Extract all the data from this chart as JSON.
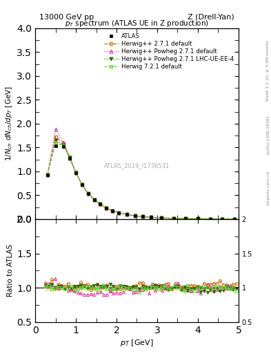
{
  "title_top": "13000 GeV pp",
  "title_right": "Z (Drell-Yan)",
  "plot_title": "$p_T$ spectrum (ATLAS UE in Z production)",
  "watermark": "ATLAS_2019_I1736531",
  "ylabel_main": "$1/N_{ch}$ $dN_{ch}/dp_T$ [GeV]",
  "ylabel_ratio": "Ratio to ATLAS",
  "xlabel": "$p_T$ [GeV]",
  "xlim": [
    0,
    5.0
  ],
  "ylim_main": [
    0,
    4
  ],
  "ylim_ratio": [
    0.5,
    2.0
  ],
  "right_label1": "Rivet 3.1.10, ≥ 3.4M events",
  "right_label2": "[arXiv:1306.3436]",
  "right_label3": "mcplots.cern.ch",
  "legend_entries": [
    "ATLAS",
    "Herwig++ 2.7.1 default",
    "Herwig++ Powheg 2.7.1 default",
    "Herwig++ Powheg 2.7.1 LHC-UE-EE-4",
    "Herwig 7.2.1 default"
  ],
  "atlas_color": "#000000",
  "hw271_color": "#cc6600",
  "hwpow271_color": "#cc3399",
  "hwpow271lhc_color": "#336600",
  "hw721_color": "#66cc44",
  "atlas_x": [
    0.3,
    0.5,
    0.7,
    0.85,
    1.0,
    1.15,
    1.3,
    1.45,
    1.6,
    1.75,
    1.9,
    2.05,
    2.25,
    2.45,
    2.65,
    2.85,
    3.1,
    3.4,
    3.7,
    4.0,
    4.3,
    4.6,
    4.9
  ],
  "atlas_y": [
    0.93,
    1.54,
    1.52,
    1.27,
    0.97,
    0.72,
    0.54,
    0.41,
    0.31,
    0.23,
    0.175,
    0.135,
    0.095,
    0.068,
    0.049,
    0.036,
    0.024,
    0.015,
    0.009,
    0.006,
    0.004,
    0.002,
    0.0015
  ]
}
